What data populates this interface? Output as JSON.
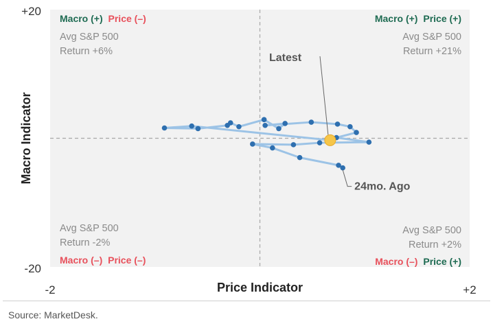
{
  "chart_data": {
    "type": "scatter",
    "xlabel": "Price Indicator",
    "ylabel": "Macro Indicator",
    "xlim": [
      -2,
      2
    ],
    "ylim": [
      -20,
      20
    ],
    "x_tick_labels": [
      "-2",
      "+2"
    ],
    "y_tick_labels": [
      "+20",
      "-20"
    ],
    "grid": false,
    "reference_lines": {
      "x": 0,
      "y": 0
    },
    "quadrants": {
      "top_left": {
        "macro_label": "Macro (+)",
        "price_label": "Price (–)",
        "stat_line1": "Avg S&P 500",
        "stat_line2": "Return +6%"
      },
      "top_right": {
        "macro_label": "Macro (+)",
        "price_label": "Price (+)",
        "stat_line1": "Avg S&P 500",
        "stat_line2": "Return +21%"
      },
      "bottom_left": {
        "macro_label": "Macro (–)",
        "price_label": "Price (–)",
        "stat_line1": "Avg S&P 500",
        "stat_line2": "Return -2%"
      },
      "bottom_right": {
        "macro_label": "Macro (–)",
        "price_label": "Price (+)",
        "stat_line1": "Avg S&P 500",
        "stat_line2": "Return +2%"
      }
    },
    "annotations": {
      "latest": "Latest",
      "oldest": "24mo. Ago"
    },
    "series": [
      {
        "points": [
          [
            0.79,
            -4.6
          ],
          [
            0.75,
            -4.2
          ],
          [
            0.38,
            -3.0
          ],
          [
            0.12,
            -1.5
          ],
          [
            -0.07,
            -0.9
          ],
          [
            0.32,
            -1.0
          ],
          [
            0.57,
            -0.7
          ],
          [
            1.04,
            -0.6
          ],
          [
            0.73,
            0.1
          ],
          [
            0.92,
            0.9
          ],
          [
            0.86,
            1.8
          ],
          [
            0.74,
            2.2
          ],
          [
            0.49,
            2.5
          ],
          [
            0.05,
            2.0
          ],
          [
            0.24,
            2.3
          ],
          [
            0.18,
            1.5
          ],
          [
            0.04,
            2.9
          ],
          [
            -0.2,
            1.8
          ],
          [
            -0.28,
            2.4
          ],
          [
            -0.31,
            2.0
          ],
          [
            -0.59,
            1.5
          ],
          [
            -0.91,
            1.6
          ],
          [
            -0.65,
            1.9
          ],
          [
            0.67,
            -0.3
          ]
        ],
        "latest": [
          0.67,
          -0.3
        ],
        "oldest": [
          0.79,
          -4.6
        ]
      }
    ]
  },
  "source": "Source: MarketDesk.",
  "colors": {
    "positive": "#1e6b52",
    "negative": "#e8505b",
    "series_line": "#9cc3e6",
    "series_point": "#2e6faf",
    "latest_fill": "#f6c64a",
    "quadrant_bg": "#f2f2f2",
    "reference_line": "#a8a8a8"
  }
}
